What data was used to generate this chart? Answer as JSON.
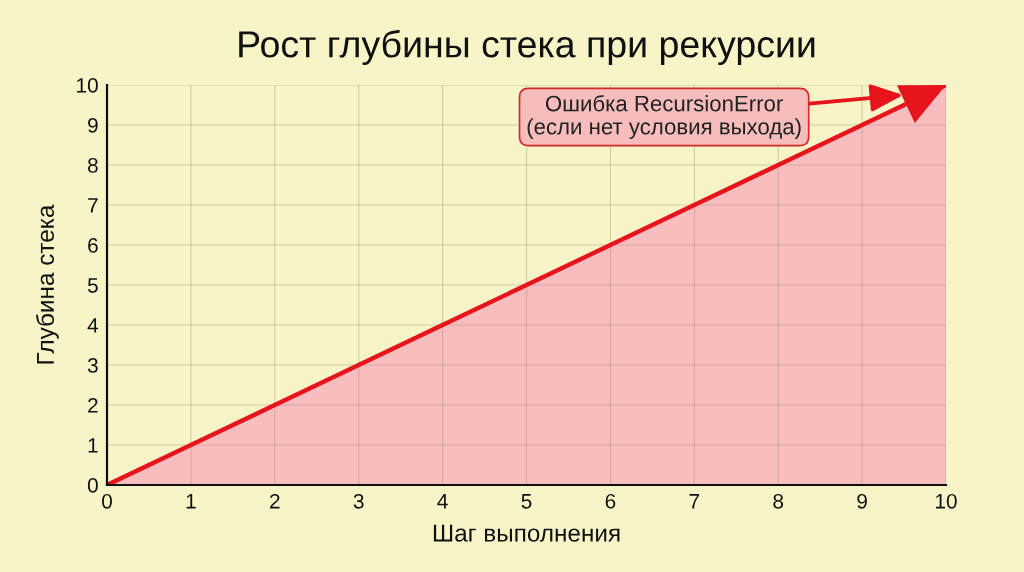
{
  "chart_data": {
    "type": "area",
    "title": "Рост глубины стека при рекурсии",
    "xlabel": "Шаг выполнения",
    "ylabel": "Глубина стека",
    "x": [
      0,
      1,
      2,
      3,
      4,
      5,
      6,
      7,
      8,
      9,
      10
    ],
    "series": [
      {
        "color": "#e8141c",
        "values": [
          0,
          1,
          2,
          3,
          4,
          5,
          6,
          7,
          8,
          9,
          10
        ]
      }
    ],
    "xlim": [
      0,
      10
    ],
    "ylim": [
      0,
      10
    ],
    "xticks": [
      0,
      1,
      2,
      3,
      4,
      5,
      6,
      7,
      8,
      9,
      10
    ],
    "yticks": [
      0,
      1,
      2,
      3,
      4,
      5,
      6,
      7,
      8,
      9,
      10
    ],
    "grid": true,
    "legend": false,
    "marker": "none",
    "line_style": "solid",
    "annotations": [
      "Ошибка RecursionError\n(если нет условия выхода)"
    ]
  }
}
